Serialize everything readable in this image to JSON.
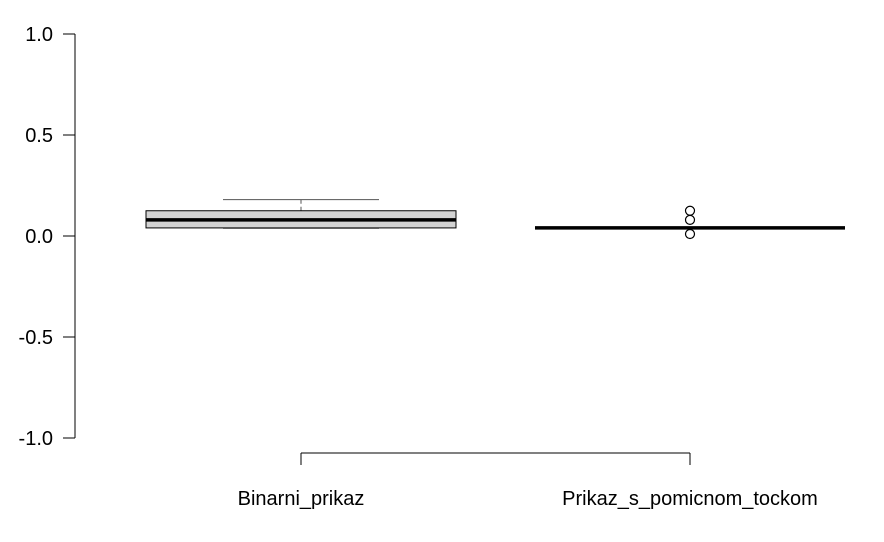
{
  "chart_data": {
    "type": "boxplot",
    "title": "",
    "xlabel": "",
    "ylabel": "",
    "ylim": [
      -1.0,
      1.0
    ],
    "yticks": [
      -1.0,
      -0.5,
      0.0,
      0.5,
      1.0
    ],
    "ytick_labels": [
      "-1.0",
      "-0.5",
      "0.0",
      "0.5",
      "1.0"
    ],
    "categories": [
      "Binarni_prikaz",
      "Prikaz_s_pomicnom_tockom"
    ],
    "boxes": [
      {
        "category": "Binarni_prikaz",
        "whisker_low": 0.04,
        "q1": 0.04,
        "median": 0.08,
        "q3": 0.125,
        "whisker_high": 0.18,
        "outliers": []
      },
      {
        "category": "Prikaz_s_pomicnom_tockom",
        "whisker_low": 0.04,
        "q1": 0.04,
        "median": 0.04,
        "q3": 0.04,
        "whisker_high": 0.04,
        "outliers": [
          0.01,
          0.08,
          0.125
        ]
      }
    ],
    "colors": {
      "box_fill": "#d3d3d3",
      "stroke": "#000000",
      "whisker": "#555555"
    },
    "grid": false,
    "legend": "none"
  }
}
